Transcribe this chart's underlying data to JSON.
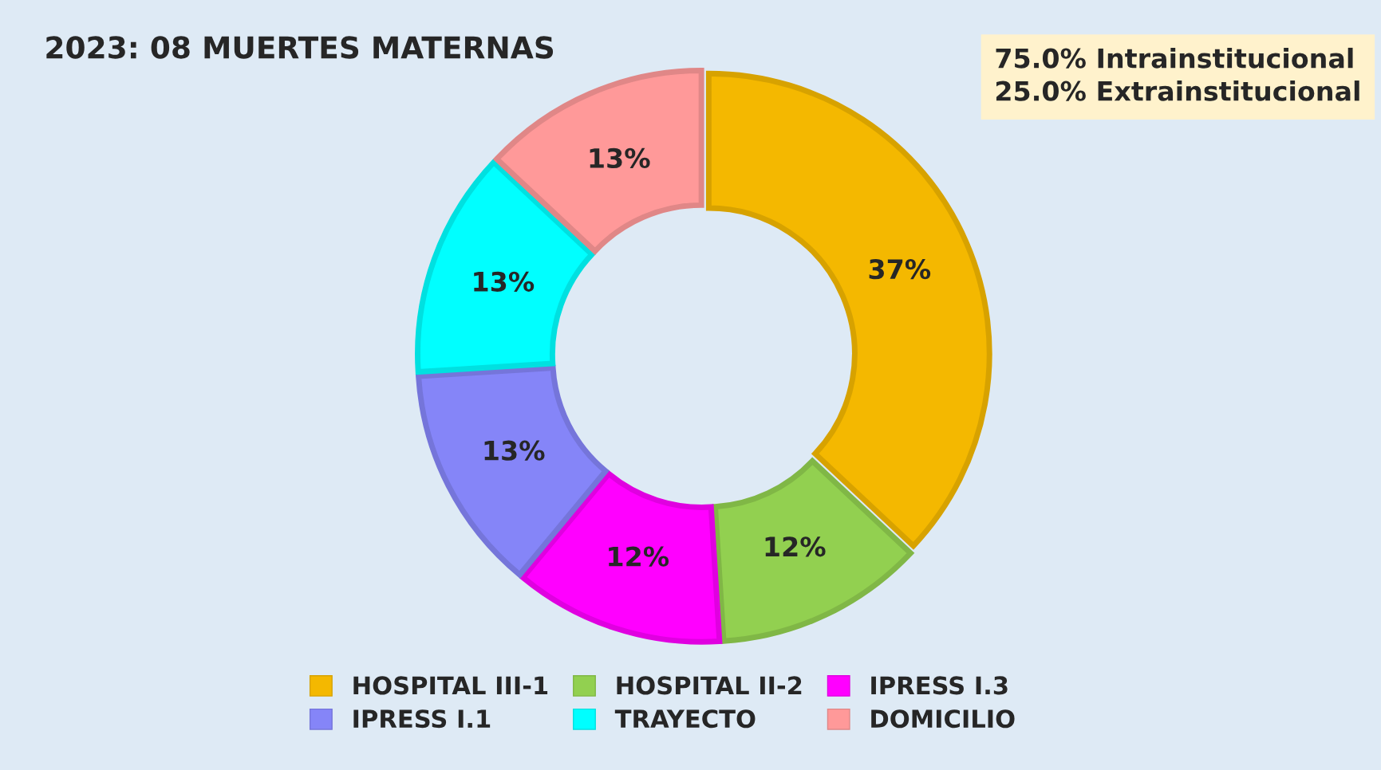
{
  "chart_data": {
    "type": "donut",
    "title": "2023: 08 MUERTES MATERNAS",
    "categories": [
      "HOSPITAL III-1",
      "HOSPITAL II-2",
      "IPRESS I.3",
      "IPRESS I.1",
      "TRAYECTO",
      "DOMICILIO"
    ],
    "values": [
      37,
      12,
      12,
      13,
      13,
      13
    ],
    "value_labels": [
      "37%",
      "12%",
      "12%",
      "13%",
      "13%",
      "13%"
    ],
    "colors": [
      "#f4b800",
      "#92d050",
      "#ff00ff",
      "#8585f8",
      "#00ffff",
      "#ff9999"
    ],
    "annotations": [
      "75.0% Intrainstitucional",
      "25.0% Extrainstitucional"
    ],
    "legend": "bottom"
  }
}
